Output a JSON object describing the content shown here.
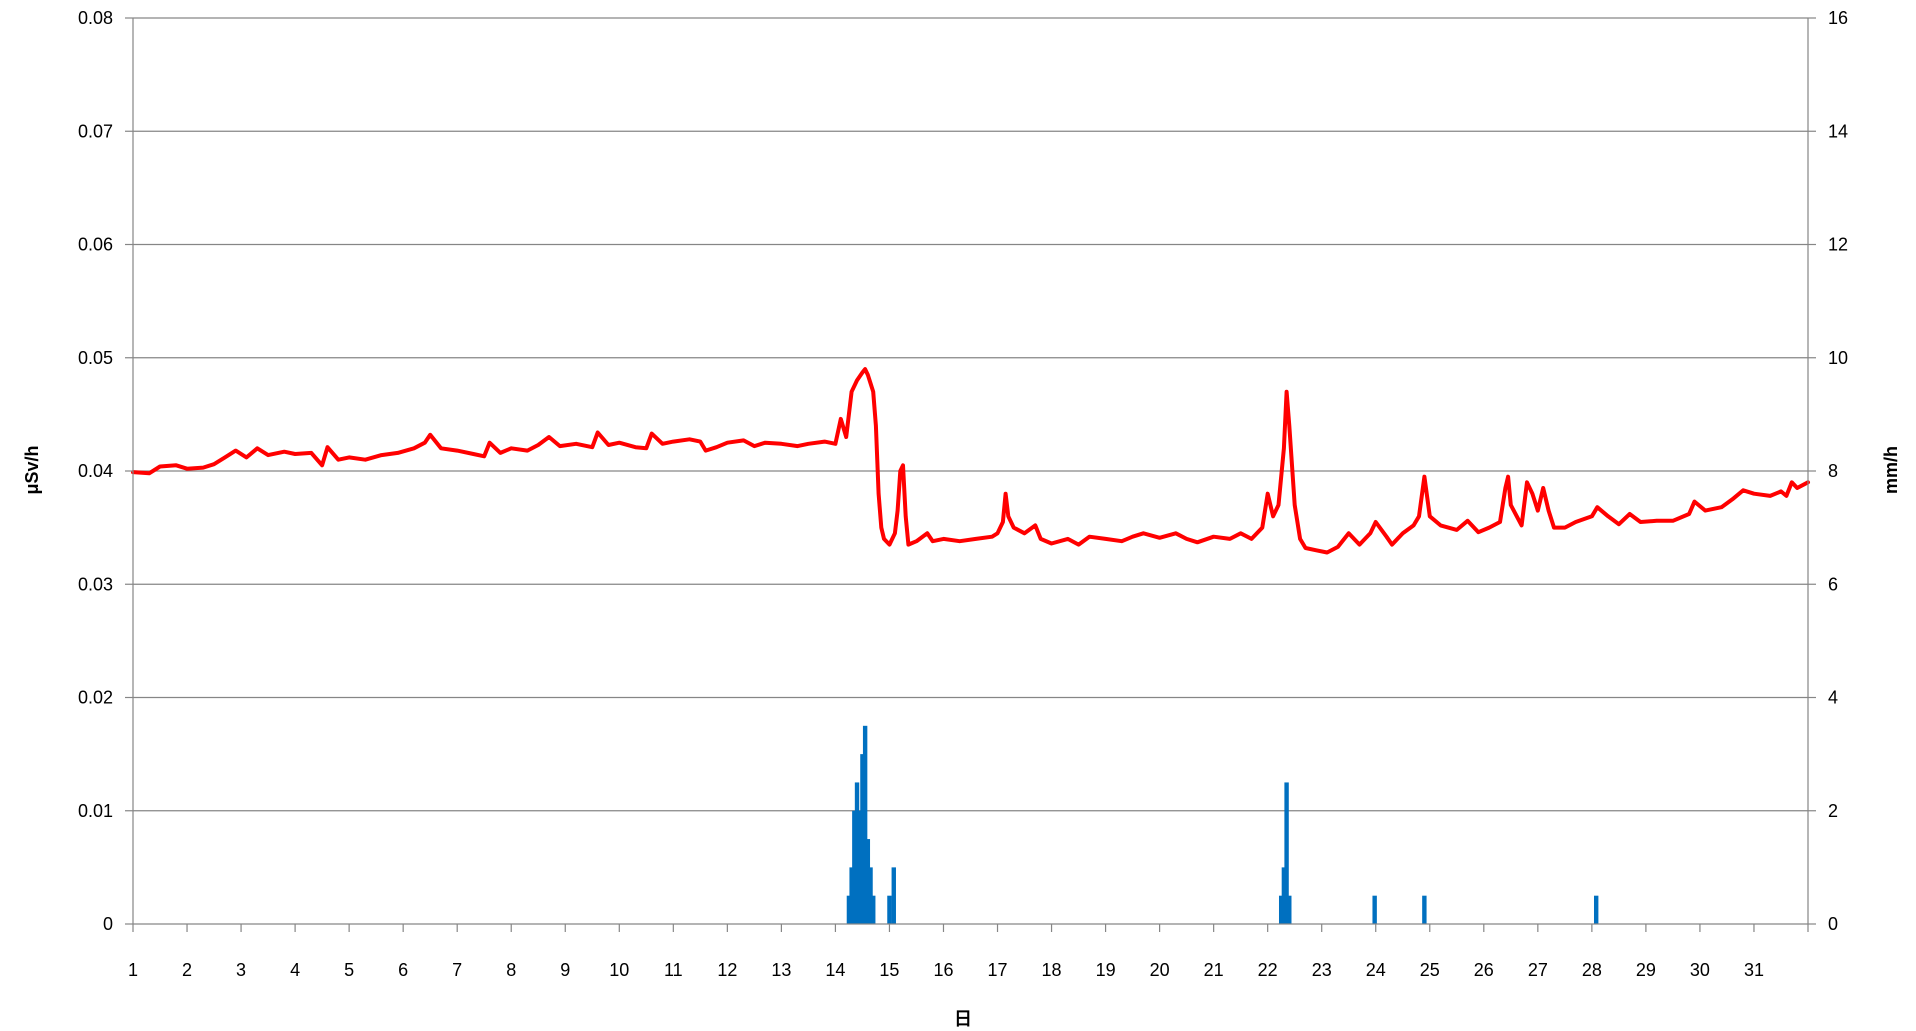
{
  "chart_data": {
    "type": "line",
    "xlabel": "日",
    "ylabel_left": "μSv/h",
    "ylabel_right": "mm/h",
    "x_ticks": [
      "1",
      "2",
      "3",
      "4",
      "5",
      "6",
      "7",
      "8",
      "9",
      "10",
      "11",
      "12",
      "13",
      "14",
      "15",
      "16",
      "17",
      "18",
      "19",
      "20",
      "21",
      "22",
      "23",
      "24",
      "25",
      "26",
      "27",
      "28",
      "29",
      "30",
      "31"
    ],
    "xlim": [
      1,
      32
    ],
    "ylim_left": [
      0,
      0.08
    ],
    "ylim_right": [
      0,
      16
    ],
    "y_ticks_left": [
      "0",
      "0.01",
      "0.02",
      "0.03",
      "0.04",
      "0.05",
      "0.06",
      "0.07",
      "0.08"
    ],
    "y_ticks_right": [
      "0",
      "2",
      "4",
      "6",
      "8",
      "10",
      "12",
      "14",
      "16"
    ],
    "grid": true,
    "series": [
      {
        "kind": "line",
        "axis": "left",
        "color": "#ff0000",
        "points": [
          [
            1.0,
            0.0399
          ],
          [
            1.3,
            0.0398
          ],
          [
            1.5,
            0.0404
          ],
          [
            1.8,
            0.0405
          ],
          [
            2.0,
            0.0402
          ],
          [
            2.3,
            0.0403
          ],
          [
            2.5,
            0.0406
          ],
          [
            2.7,
            0.0412
          ],
          [
            2.9,
            0.0418
          ],
          [
            3.1,
            0.0412
          ],
          [
            3.3,
            0.042
          ],
          [
            3.5,
            0.0414
          ],
          [
            3.8,
            0.0417
          ],
          [
            4.0,
            0.0415
          ],
          [
            4.3,
            0.0416
          ],
          [
            4.5,
            0.0405
          ],
          [
            4.6,
            0.0421
          ],
          [
            4.8,
            0.041
          ],
          [
            5.0,
            0.0412
          ],
          [
            5.3,
            0.041
          ],
          [
            5.6,
            0.0414
          ],
          [
            5.9,
            0.0416
          ],
          [
            6.2,
            0.042
          ],
          [
            6.4,
            0.0425
          ],
          [
            6.5,
            0.0432
          ],
          [
            6.7,
            0.042
          ],
          [
            7.0,
            0.0418
          ],
          [
            7.3,
            0.0415
          ],
          [
            7.5,
            0.0413
          ],
          [
            7.6,
            0.0425
          ],
          [
            7.8,
            0.0416
          ],
          [
            8.0,
            0.042
          ],
          [
            8.3,
            0.0418
          ],
          [
            8.5,
            0.0423
          ],
          [
            8.7,
            0.043
          ],
          [
            8.9,
            0.0422
          ],
          [
            9.2,
            0.0424
          ],
          [
            9.5,
            0.0421
          ],
          [
            9.6,
            0.0434
          ],
          [
            9.8,
            0.0423
          ],
          [
            10.0,
            0.0425
          ],
          [
            10.3,
            0.0421
          ],
          [
            10.5,
            0.042
          ],
          [
            10.6,
            0.0433
          ],
          [
            10.8,
            0.0424
          ],
          [
            11.0,
            0.0426
          ],
          [
            11.3,
            0.0428
          ],
          [
            11.5,
            0.0426
          ],
          [
            11.6,
            0.0418
          ],
          [
            11.8,
            0.0421
          ],
          [
            12.0,
            0.0425
          ],
          [
            12.3,
            0.0427
          ],
          [
            12.5,
            0.0422
          ],
          [
            12.7,
            0.0425
          ],
          [
            13.0,
            0.0424
          ],
          [
            13.3,
            0.0422
          ],
          [
            13.5,
            0.0424
          ],
          [
            13.8,
            0.0426
          ],
          [
            14.0,
            0.0424
          ],
          [
            14.1,
            0.0446
          ],
          [
            14.2,
            0.043
          ],
          [
            14.3,
            0.047
          ],
          [
            14.4,
            0.048
          ],
          [
            14.5,
            0.0487
          ],
          [
            14.55,
            0.049
          ],
          [
            14.6,
            0.0485
          ],
          [
            14.7,
            0.047
          ],
          [
            14.75,
            0.044
          ],
          [
            14.8,
            0.038
          ],
          [
            14.85,
            0.035
          ],
          [
            14.9,
            0.034
          ],
          [
            15.0,
            0.0335
          ],
          [
            15.1,
            0.0345
          ],
          [
            15.15,
            0.0365
          ],
          [
            15.2,
            0.04
          ],
          [
            15.25,
            0.0405
          ],
          [
            15.3,
            0.036
          ],
          [
            15.35,
            0.0335
          ],
          [
            15.5,
            0.0338
          ],
          [
            15.7,
            0.0345
          ],
          [
            15.8,
            0.0338
          ],
          [
            16.0,
            0.034
          ],
          [
            16.3,
            0.0338
          ],
          [
            16.6,
            0.034
          ],
          [
            16.9,
            0.0342
          ],
          [
            17.0,
            0.0345
          ],
          [
            17.1,
            0.0355
          ],
          [
            17.15,
            0.038
          ],
          [
            17.2,
            0.036
          ],
          [
            17.3,
            0.035
          ],
          [
            17.5,
            0.0345
          ],
          [
            17.7,
            0.0352
          ],
          [
            17.8,
            0.034
          ],
          [
            18.0,
            0.0336
          ],
          [
            18.3,
            0.034
          ],
          [
            18.5,
            0.0335
          ],
          [
            18.7,
            0.0342
          ],
          [
            19.0,
            0.034
          ],
          [
            19.3,
            0.0338
          ],
          [
            19.5,
            0.0342
          ],
          [
            19.7,
            0.0345
          ],
          [
            20.0,
            0.0341
          ],
          [
            20.3,
            0.0345
          ],
          [
            20.5,
            0.034
          ],
          [
            20.7,
            0.0337
          ],
          [
            21.0,
            0.0342
          ],
          [
            21.3,
            0.034
          ],
          [
            21.5,
            0.0345
          ],
          [
            21.7,
            0.034
          ],
          [
            21.9,
            0.035
          ],
          [
            22.0,
            0.038
          ],
          [
            22.1,
            0.036
          ],
          [
            22.2,
            0.037
          ],
          [
            22.3,
            0.042
          ],
          [
            22.35,
            0.047
          ],
          [
            22.4,
            0.044
          ],
          [
            22.5,
            0.037
          ],
          [
            22.6,
            0.034
          ],
          [
            22.7,
            0.0332
          ],
          [
            22.9,
            0.033
          ],
          [
            23.1,
            0.0328
          ],
          [
            23.3,
            0.0333
          ],
          [
            23.5,
            0.0345
          ],
          [
            23.7,
            0.0335
          ],
          [
            23.9,
            0.0345
          ],
          [
            24.0,
            0.0355
          ],
          [
            24.2,
            0.0342
          ],
          [
            24.3,
            0.0335
          ],
          [
            24.5,
            0.0345
          ],
          [
            24.7,
            0.0352
          ],
          [
            24.8,
            0.036
          ],
          [
            24.9,
            0.0395
          ],
          [
            25.0,
            0.036
          ],
          [
            25.2,
            0.0352
          ],
          [
            25.5,
            0.0348
          ],
          [
            25.7,
            0.0356
          ],
          [
            25.9,
            0.0346
          ],
          [
            26.1,
            0.035
          ],
          [
            26.3,
            0.0355
          ],
          [
            26.4,
            0.0385
          ],
          [
            26.45,
            0.0395
          ],
          [
            26.5,
            0.037
          ],
          [
            26.7,
            0.0352
          ],
          [
            26.8,
            0.039
          ],
          [
            26.9,
            0.038
          ],
          [
            27.0,
            0.0365
          ],
          [
            27.1,
            0.0385
          ],
          [
            27.2,
            0.0365
          ],
          [
            27.3,
            0.035
          ],
          [
            27.5,
            0.035
          ],
          [
            27.7,
            0.0355
          ],
          [
            28.0,
            0.036
          ],
          [
            28.1,
            0.0368
          ],
          [
            28.3,
            0.036
          ],
          [
            28.5,
            0.0353
          ],
          [
            28.7,
            0.0362
          ],
          [
            28.9,
            0.0355
          ],
          [
            29.2,
            0.0356
          ],
          [
            29.5,
            0.0356
          ],
          [
            29.8,
            0.0362
          ],
          [
            29.9,
            0.0373
          ],
          [
            30.1,
            0.0365
          ],
          [
            30.4,
            0.0368
          ],
          [
            30.6,
            0.0375
          ],
          [
            30.8,
            0.0383
          ],
          [
            31.0,
            0.038
          ],
          [
            31.3,
            0.0378
          ],
          [
            31.5,
            0.0382
          ],
          [
            31.6,
            0.0378
          ],
          [
            31.7,
            0.039
          ],
          [
            31.8,
            0.0385
          ],
          [
            32.0,
            0.039
          ]
        ]
      },
      {
        "kind": "bar",
        "axis": "right",
        "color": "#0070c0",
        "points": [
          [
            14.25,
            0.5
          ],
          [
            14.3,
            1.0
          ],
          [
            14.35,
            2.0
          ],
          [
            14.4,
            2.5
          ],
          [
            14.45,
            2.0
          ],
          [
            14.5,
            3.0
          ],
          [
            14.55,
            3.5
          ],
          [
            14.6,
            1.5
          ],
          [
            14.65,
            1.0
          ],
          [
            14.7,
            0.5
          ],
          [
            15.0,
            0.5
          ],
          [
            15.08,
            1.0
          ],
          [
            22.25,
            0.5
          ],
          [
            22.3,
            1.0
          ],
          [
            22.35,
            2.5
          ],
          [
            22.4,
            0.5
          ],
          [
            23.98,
            0.5
          ],
          [
            24.9,
            0.5
          ],
          [
            28.08,
            0.5
          ]
        ]
      }
    ]
  }
}
